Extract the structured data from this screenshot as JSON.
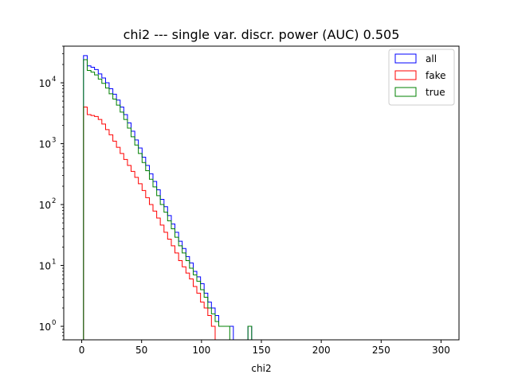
{
  "chart_data": {
    "type": "histogram",
    "title": "chi2 --- single var. discr. power (AUC) 0.505",
    "xlabel": "chi2",
    "ylabel": "",
    "yscale": "log",
    "xlim": [
      -15,
      315
    ],
    "ylim": [
      0.6,
      40000
    ],
    "x_ticks": [
      0,
      50,
      100,
      150,
      200,
      250,
      300
    ],
    "x_tick_labels": [
      "0",
      "50",
      "100",
      "150",
      "200",
      "250",
      "300"
    ],
    "y_ticks": [
      1,
      10,
      100,
      1000,
      10000
    ],
    "y_tick_labels": [
      "10",
      "10",
      "10",
      "10",
      "10"
    ],
    "y_tick_exponents": [
      "0",
      "1",
      "2",
      "3",
      "4"
    ],
    "grid": false,
    "legend_position": "top-right",
    "bin_edges": [
      1.5,
      4.6,
      7.7,
      10.7,
      13.8,
      16.8,
      19.9,
      22.9,
      26.0,
      29.0,
      32.1,
      35.1,
      38.2,
      41.2,
      44.3,
      47.3,
      50.4,
      53.4,
      56.5,
      59.5,
      62.6,
      65.6,
      68.7,
      71.7,
      74.8,
      77.8,
      80.9,
      83.9,
      87.0,
      90.0,
      93.1,
      96.1,
      99.2,
      102.2,
      105.3,
      108.3,
      111.4,
      114.4,
      117.5,
      120.5,
      123.6,
      126.6,
      129.7,
      132.7,
      135.8,
      138.8,
      141.9,
      144.9
    ],
    "series": [
      {
        "name": "all",
        "color": "#0000ff",
        "values": [
          28000,
          19000,
          18000,
          16500,
          14000,
          12000,
          10000,
          8000,
          6500,
          5200,
          4000,
          3000,
          2200,
          1600,
          1150,
          850,
          600,
          440,
          320,
          240,
          175,
          122,
          92,
          66,
          48,
          35,
          25,
          19,
          14,
          11,
          8,
          6.5,
          5,
          3.5,
          2.5,
          2,
          1.5,
          1,
          1,
          1,
          1,
          0,
          0,
          0,
          0,
          1,
          0
        ]
      },
      {
        "name": "fake",
        "color": "#ff0000",
        "values": [
          4000,
          3000,
          2900,
          2800,
          2500,
          2100,
          1700,
          1400,
          1100,
          870,
          690,
          550,
          440,
          350,
          280,
          220,
          170,
          130,
          100,
          78,
          60,
          46,
          35,
          27,
          21,
          16,
          12,
          9.5,
          7.5,
          6,
          4.5,
          3.5,
          2.5,
          2,
          1.5,
          1,
          0,
          0,
          0,
          0,
          0,
          0,
          0,
          0,
          0,
          0,
          0
        ]
      },
      {
        "name": "true",
        "color": "#008000",
        "values": [
          24000,
          16000,
          15000,
          13500,
          11500,
          9800,
          8200,
          6600,
          5400,
          4300,
          3300,
          2500,
          1800,
          1300,
          950,
          690,
          490,
          360,
          260,
          195,
          140,
          100,
          75,
          54,
          40,
          29,
          21,
          16,
          12,
          9,
          7,
          5.5,
          4,
          3,
          2,
          1.6,
          1.2,
          1,
          1,
          1,
          0,
          0,
          0,
          0,
          0,
          1,
          0
        ]
      }
    ],
    "legend": [
      "all",
      "fake",
      "true"
    ]
  }
}
